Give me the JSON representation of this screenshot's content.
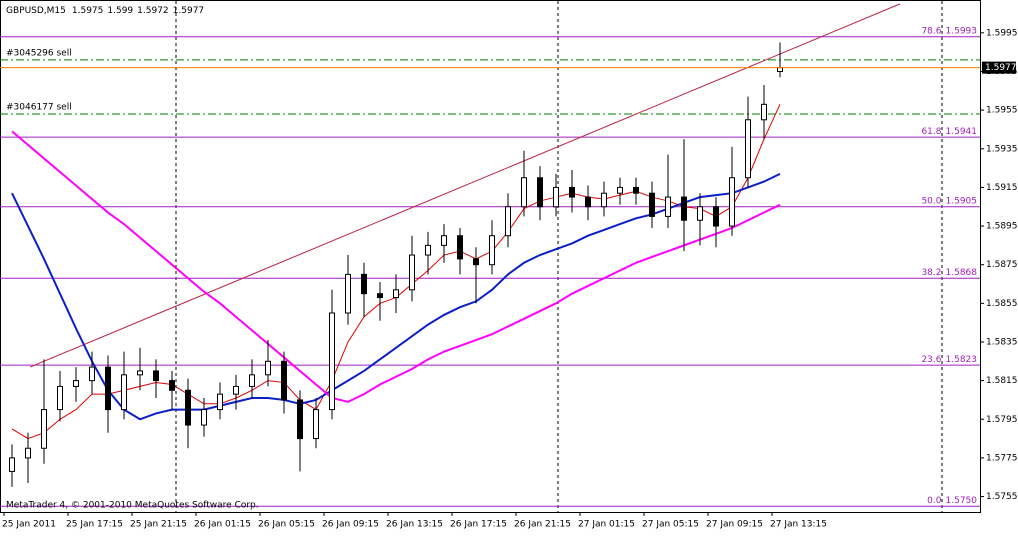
{
  "chart_data": {
    "type": "candlestick",
    "symbol": "GBPUSD,M15",
    "copyright": "MetaTrader 4, © 2001-2010 MetaQuotes Software Corp.",
    "xlim": [
      -1,
      244
    ],
    "ylim": [
      1.5747,
      1.6012
    ],
    "xticks": [
      {
        "value": 0,
        "label": "25 Jan 2011"
      },
      {
        "value": 16,
        "label": "25 Jan 17:15"
      },
      {
        "value": 32,
        "label": "25 Jan 21:15"
      },
      {
        "value": 48,
        "label": "26 Jan 01:15"
      },
      {
        "value": 64,
        "label": "26 Jan 05:15"
      },
      {
        "value": 80,
        "label": "26 Jan 09:15"
      },
      {
        "value": 96,
        "label": "26 Jan 13:15"
      },
      {
        "value": 112,
        "label": "26 Jan 17:15"
      },
      {
        "value": 128,
        "label": "26 Jan 21:15"
      },
      {
        "value": 144,
        "label": "27 Jan 01:15"
      },
      {
        "value": 160,
        "label": "27 Jan 05:15"
      },
      {
        "value": 176,
        "label": "27 Jan 09:15"
      },
      {
        "value": 192,
        "label": "27 Jan 13:15"
      }
    ],
    "yticks": [
      1.5995,
      1.5975,
      1.5955,
      1.5935,
      1.5915,
      1.5895,
      1.5875,
      1.5855,
      1.5835,
      1.5815,
      1.5795,
      1.5775,
      1.5755
    ],
    "x": [
      2,
      6,
      10,
      14,
      18,
      22,
      26,
      30,
      34,
      38,
      42,
      46,
      50,
      54,
      58,
      62,
      66,
      70,
      74,
      78,
      82,
      86,
      90,
      94,
      98,
      102,
      106,
      110,
      114,
      118,
      122,
      126,
      130,
      134,
      138,
      142,
      146,
      150,
      154,
      158,
      162,
      166,
      170,
      174,
      178,
      182,
      186,
      190,
      194
    ],
    "open": [
      1.5768,
      1.5775,
      1.578,
      1.58,
      1.5812,
      1.5815,
      1.5822,
      1.58,
      1.5818,
      1.582,
      1.5815,
      1.581,
      1.5792,
      1.58,
      1.5808,
      1.5812,
      1.5818,
      1.5825,
      1.5805,
      1.5785,
      1.58,
      1.585,
      1.587,
      1.586,
      1.5858,
      1.5862,
      1.588,
      1.5885,
      1.589,
      1.5878,
      1.5875,
      1.589,
      1.5905,
      1.592,
      1.5905,
      1.5915,
      1.591,
      1.5905,
      1.5912,
      1.5915,
      1.5912,
      1.59,
      1.591,
      1.5898,
      1.5905,
      1.5895,
      1.592,
      1.595,
      1.5975
    ],
    "high": [
      1.5782,
      1.5788,
      1.5826,
      1.582,
      1.5822,
      1.583,
      1.5828,
      1.583,
      1.5832,
      1.5826,
      1.582,
      1.5816,
      1.5806,
      1.5814,
      1.5818,
      1.5826,
      1.5836,
      1.583,
      1.581,
      1.5806,
      1.5862,
      1.588,
      1.5876,
      1.5866,
      1.587,
      1.589,
      1.5892,
      1.5896,
      1.5894,
      1.5884,
      1.5898,
      1.5912,
      1.5934,
      1.5926,
      1.5922,
      1.5924,
      1.5916,
      1.5918,
      1.592,
      1.592,
      1.5918,
      1.5932,
      1.594,
      1.5912,
      1.591,
      1.5936,
      1.5962,
      1.5968,
      1.599
    ],
    "low": [
      1.576,
      1.5762,
      1.5772,
      1.5794,
      1.5804,
      1.5808,
      1.5788,
      1.5795,
      1.581,
      1.5806,
      1.58,
      1.578,
      1.5786,
      1.5795,
      1.58,
      1.5806,
      1.5812,
      1.5798,
      1.5768,
      1.578,
      1.5795,
      1.5844,
      1.5848,
      1.5846,
      1.585,
      1.5856,
      1.587,
      1.5876,
      1.587,
      1.5855,
      1.587,
      1.5884,
      1.59,
      1.5898,
      1.59,
      1.5902,
      1.5898,
      1.59,
      1.5906,
      1.5906,
      1.5894,
      1.5894,
      1.5882,
      1.5885,
      1.5884,
      1.589,
      1.5915,
      1.594,
      1.5972
    ],
    "close": [
      1.5775,
      1.578,
      1.58,
      1.5812,
      1.5815,
      1.5822,
      1.58,
      1.5818,
      1.582,
      1.5815,
      1.581,
      1.5792,
      1.58,
      1.5808,
      1.5812,
      1.5818,
      1.5825,
      1.5805,
      1.5785,
      1.58,
      1.585,
      1.587,
      1.586,
      1.5858,
      1.5862,
      1.588,
      1.5885,
      1.589,
      1.5878,
      1.5875,
      1.589,
      1.5905,
      1.592,
      1.5905,
      1.5915,
      1.591,
      1.5905,
      1.5912,
      1.5915,
      1.5912,
      1.59,
      1.591,
      1.5898,
      1.5905,
      1.5895,
      1.592,
      1.595,
      1.5958,
      1.5977
    ],
    "series": [
      {
        "color": "#e00000",
        "width": 1,
        "values": [
          1.579,
          1.5785,
          1.5788,
          1.5795,
          1.58,
          1.5808,
          1.5808,
          1.581,
          1.5812,
          1.5814,
          1.5813,
          1.5808,
          1.5803,
          1.5803,
          1.5806,
          1.581,
          1.5815,
          1.5814,
          1.5805,
          1.58,
          1.5815,
          1.5835,
          1.5848,
          1.5855,
          1.5858,
          1.5865,
          1.5872,
          1.588,
          1.5882,
          1.5878,
          1.5882,
          1.5892,
          1.5904,
          1.5908,
          1.591,
          1.5912,
          1.591,
          1.5909,
          1.5911,
          1.5913,
          1.591,
          1.5908,
          1.5905,
          1.5904,
          1.59,
          1.5905,
          1.592,
          1.594,
          1.5958
        ]
      },
      {
        "color": "#0a1fc8",
        "width": 2,
        "values": [
          1.5912,
          1.5895,
          1.5878,
          1.586,
          1.5842,
          1.5825,
          1.581,
          1.58,
          1.5795,
          1.5798,
          1.58,
          1.58,
          1.58,
          1.5802,
          1.5804,
          1.5806,
          1.5806,
          1.5805,
          1.5803,
          1.5805,
          1.581,
          1.5815,
          1.582,
          1.5826,
          1.5832,
          1.5838,
          1.5844,
          1.5849,
          1.5853,
          1.5856,
          1.5862,
          1.587,
          1.5876,
          1.588,
          1.5883,
          1.5886,
          1.589,
          1.5893,
          1.5896,
          1.5899,
          1.5901,
          1.5904,
          1.5907,
          1.591,
          1.5911,
          1.5912,
          1.5915,
          1.5918,
          1.5922
        ]
      },
      {
        "color": "#ff00ff",
        "width": 2,
        "values": [
          1.5944,
          1.5937,
          1.593,
          1.5923,
          1.5916,
          1.5909,
          1.5902,
          1.5896,
          1.5889,
          1.5882,
          1.5875,
          1.5868,
          1.5861,
          1.5855,
          1.5848,
          1.5841,
          1.5834,
          1.5827,
          1.582,
          1.5813,
          1.5806,
          1.5804,
          1.5808,
          1.5813,
          1.5817,
          1.5821,
          1.5826,
          1.583,
          1.5833,
          1.5836,
          1.5839,
          1.5843,
          1.5847,
          1.5851,
          1.5855,
          1.586,
          1.5864,
          1.5868,
          1.5872,
          1.5876,
          1.5879,
          1.5882,
          1.5885,
          1.5888,
          1.5891,
          1.5894,
          1.5898,
          1.5902,
          1.5906
        ]
      }
    ],
    "trendline": {
      "color": "#c02040",
      "x": [
        6.5,
        224
      ],
      "y": [
        1.5822,
        1.601
      ]
    },
    "fibo": {
      "color": "#a020c0",
      "levels": [
        {
          "ratio": "78.6",
          "price": 1.5993
        },
        {
          "ratio": "61.8",
          "price": 1.5941
        },
        {
          "ratio": "50.0",
          "price": 1.5905
        },
        {
          "ratio": "38.2",
          "price": 1.5868
        },
        {
          "ratio": "23.6",
          "price": 1.5823
        },
        {
          "ratio": "0.0",
          "price": {
            "value": 1.575,
            "label": "1.5750"
          }
        }
      ]
    },
    "orders": [
      {
        "label": "#3045296 sell",
        "price": 1.5981
      },
      {
        "label": "#3046177 sell",
        "price": 1.5953
      }
    ],
    "order_color": "#008000",
    "bid_color": "#ff8000"
  }
}
